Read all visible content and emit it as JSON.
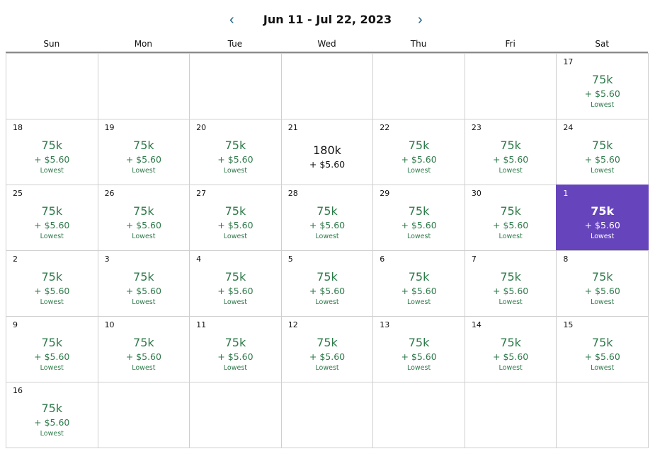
{
  "header": {
    "title": "Jun 11 - Jul 22, 2023",
    "prev_icon": "‹",
    "next_icon": "›"
  },
  "days_of_week": [
    "Sun",
    "Mon",
    "Tue",
    "Wed",
    "Thu",
    "Fri",
    "Sat"
  ],
  "colors": {
    "accent": "#6644bb",
    "price": "#2e7a4a",
    "nav": "#1d5f86"
  },
  "cells": [
    null,
    null,
    null,
    null,
    null,
    null,
    {
      "day": "17",
      "points": "75k",
      "fee": "+ $5.60",
      "tag": "Lowest"
    },
    {
      "day": "18",
      "points": "75k",
      "fee": "+ $5.60",
      "tag": "Lowest"
    },
    {
      "day": "19",
      "points": "75k",
      "fee": "+ $5.60",
      "tag": "Lowest"
    },
    {
      "day": "20",
      "points": "75k",
      "fee": "+ $5.60",
      "tag": "Lowest"
    },
    {
      "day": "21",
      "points": "180k",
      "fee": "+ $5.60"
    },
    {
      "day": "22",
      "points": "75k",
      "fee": "+ $5.60",
      "tag": "Lowest"
    },
    {
      "day": "23",
      "points": "75k",
      "fee": "+ $5.60",
      "tag": "Lowest"
    },
    {
      "day": "24",
      "points": "75k",
      "fee": "+ $5.60",
      "tag": "Lowest"
    },
    {
      "day": "25",
      "points": "75k",
      "fee": "+ $5.60",
      "tag": "Lowest"
    },
    {
      "day": "26",
      "points": "75k",
      "fee": "+ $5.60",
      "tag": "Lowest"
    },
    {
      "day": "27",
      "points": "75k",
      "fee": "+ $5.60",
      "tag": "Lowest"
    },
    {
      "day": "28",
      "points": "75k",
      "fee": "+ $5.60",
      "tag": "Lowest"
    },
    {
      "day": "29",
      "points": "75k",
      "fee": "+ $5.60",
      "tag": "Lowest"
    },
    {
      "day": "30",
      "points": "75k",
      "fee": "+ $5.60",
      "tag": "Lowest"
    },
    {
      "day": "1",
      "points": "75k",
      "fee": "+ $5.60",
      "tag": "Lowest",
      "selected": true
    },
    {
      "day": "2",
      "points": "75k",
      "fee": "+ $5.60",
      "tag": "Lowest"
    },
    {
      "day": "3",
      "points": "75k",
      "fee": "+ $5.60",
      "tag": "Lowest"
    },
    {
      "day": "4",
      "points": "75k",
      "fee": "+ $5.60",
      "tag": "Lowest"
    },
    {
      "day": "5",
      "points": "75k",
      "fee": "+ $5.60",
      "tag": "Lowest"
    },
    {
      "day": "6",
      "points": "75k",
      "fee": "+ $5.60",
      "tag": "Lowest"
    },
    {
      "day": "7",
      "points": "75k",
      "fee": "+ $5.60",
      "tag": "Lowest"
    },
    {
      "day": "8",
      "points": "75k",
      "fee": "+ $5.60",
      "tag": "Lowest"
    },
    {
      "day": "9",
      "points": "75k",
      "fee": "+ $5.60",
      "tag": "Lowest"
    },
    {
      "day": "10",
      "points": "75k",
      "fee": "+ $5.60",
      "tag": "Lowest"
    },
    {
      "day": "11",
      "points": "75k",
      "fee": "+ $5.60",
      "tag": "Lowest"
    },
    {
      "day": "12",
      "points": "75k",
      "fee": "+ $5.60",
      "tag": "Lowest"
    },
    {
      "day": "13",
      "points": "75k",
      "fee": "+ $5.60",
      "tag": "Lowest"
    },
    {
      "day": "14",
      "points": "75k",
      "fee": "+ $5.60",
      "tag": "Lowest"
    },
    {
      "day": "15",
      "points": "75k",
      "fee": "+ $5.60",
      "tag": "Lowest"
    },
    {
      "day": "16",
      "points": "75k",
      "fee": "+ $5.60",
      "tag": "Lowest"
    },
    null,
    null,
    null,
    null,
    null,
    null
  ]
}
